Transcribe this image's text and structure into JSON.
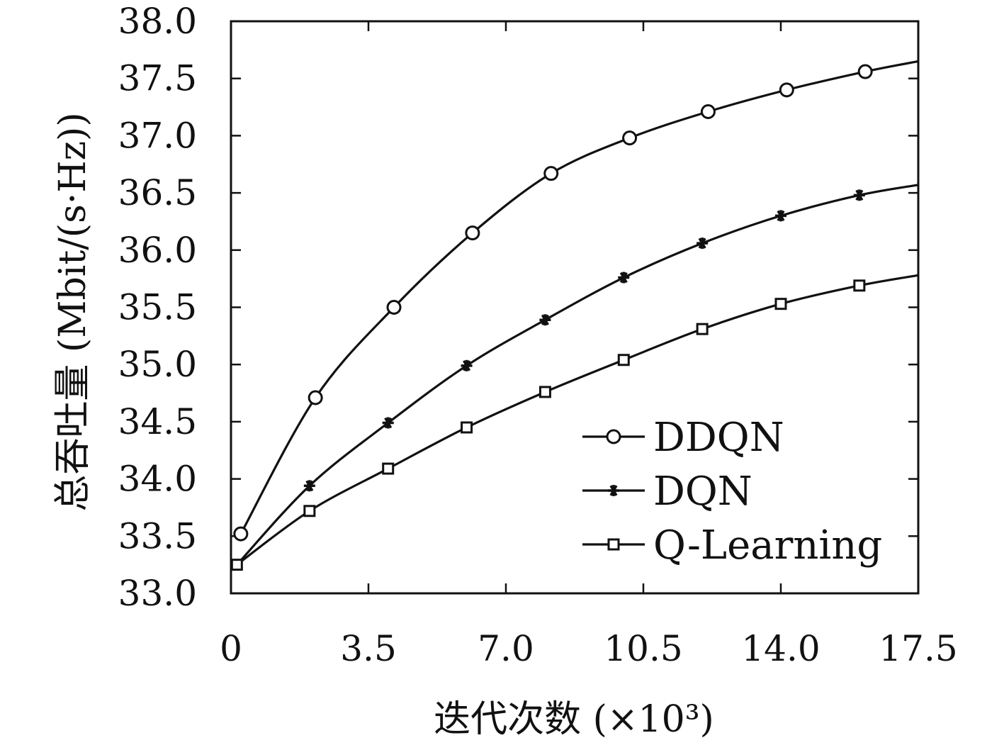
{
  "chart_data": {
    "type": "line",
    "title": "",
    "xlabel": "迭代次数 (×10³)",
    "ylabel": "总吞吐量 (Mbit/(s·Hz))",
    "xlim": [
      0,
      17.5
    ],
    "ylim": [
      33.0,
      38.0
    ],
    "xticks": [
      "0",
      "3.5",
      "7.0",
      "10.5",
      "14.0",
      "17.5"
    ],
    "yticks": [
      "33.0",
      "33.5",
      "34.0",
      "34.5",
      "35.0",
      "35.5",
      "36.0",
      "36.5",
      "37.0",
      "37.5",
      "38.0"
    ],
    "grid": false,
    "legend_position": "bottom-right",
    "series": [
      {
        "name": "DDQN",
        "marker": "circle",
        "color": "#111111",
        "x": [
          0.25,
          2.15,
          4.15,
          6.15,
          8.15,
          10.15,
          12.15,
          14.15,
          16.15,
          17.5
        ],
        "values": [
          33.52,
          34.71,
          35.5,
          36.15,
          36.67,
          36.98,
          37.21,
          37.4,
          37.56,
          37.65
        ],
        "marker_count": 9
      },
      {
        "name": "DQN",
        "marker": "asterisk",
        "color": "#111111",
        "x": [
          0.15,
          2.0,
          4.0,
          6.0,
          8.0,
          10.0,
          12.0,
          14.0,
          16.0,
          17.5
        ],
        "values": [
          33.25,
          33.94,
          34.49,
          34.99,
          35.39,
          35.76,
          36.06,
          36.3,
          36.48,
          36.57
        ],
        "marker_count": 9
      },
      {
        "name": "Q-Learning",
        "marker": "square",
        "color": "#111111",
        "x": [
          0.15,
          2.0,
          4.0,
          6.0,
          8.0,
          10.0,
          12.0,
          14.0,
          16.0,
          17.5
        ],
        "values": [
          33.25,
          33.72,
          34.09,
          34.45,
          34.76,
          35.04,
          35.31,
          35.53,
          35.69,
          35.78
        ],
        "marker_count": 9
      }
    ]
  }
}
